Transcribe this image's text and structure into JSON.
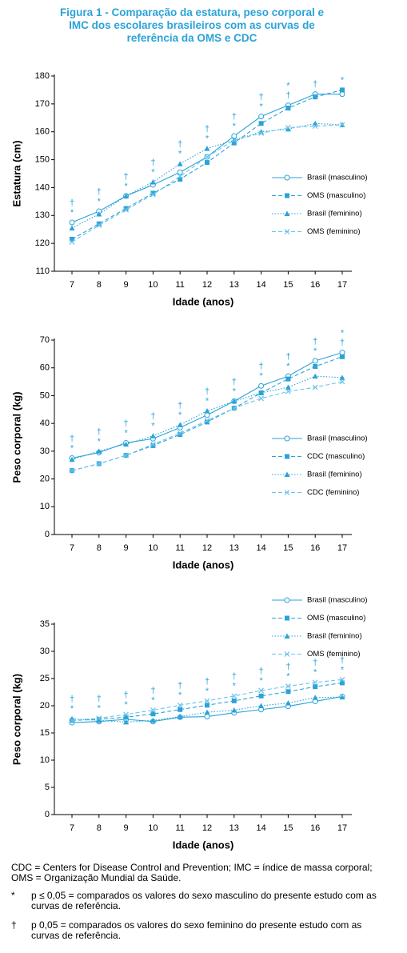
{
  "title": "Figura 1 - Comparação da estatura, peso corporal e IMC dos escolares brasileiros com as curvas de referência da OMS e CDC",
  "notes": {
    "abbreviations": "CDC = Centers for Disease Control and Prevention; IMC = índice de massa corporal; OMS = Organização Mundial da Saúde.",
    "items": [
      {
        "symbol": "*",
        "text": "p ≤ 0,05 = comparados os valores do sexo masculino do presente estudo com as curvas de referência."
      },
      {
        "symbol": "†",
        "text": "p  0,05 = comparados os valores do sexo feminino do presente estudo com as curvas de referência."
      }
    ]
  },
  "chart_data": [
    {
      "type": "line",
      "y_label": "Estatura (cm)",
      "x_label": "Idade (anos)",
      "legend": "right",
      "categories": [
        "7",
        "8",
        "9",
        "10",
        "11",
        "12",
        "13",
        "14",
        "15",
        "16",
        "17"
      ],
      "ylim": [
        110,
        180
      ],
      "yticks": [
        110,
        120,
        130,
        140,
        150,
        160,
        170,
        180
      ],
      "series": [
        {
          "name": "Brasil (masculino)",
          "color": "#2aa3d8",
          "line_style": "solid",
          "marker": "circle",
          "values": [
            127.5,
            131.5,
            137,
            141,
            145.5,
            151,
            158.5,
            165.5,
            169.5,
            173.5,
            173.5
          ]
        },
        {
          "name": "OMS (masculino)",
          "color": "#2aa3d8",
          "line_style": "dashed",
          "marker": "square",
          "values": [
            121.5,
            127,
            132.5,
            138,
            143,
            149,
            156,
            163,
            168.5,
            172.5,
            175
          ]
        },
        {
          "name": "Brasil (feminino)",
          "color": "#2aa3d8",
          "line_style": "dotted",
          "marker": "triangle",
          "values": [
            125.5,
            130.5,
            137,
            142,
            148.5,
            154,
            157,
            160,
            161,
            163,
            162.5
          ]
        },
        {
          "name": "OMS (feminino)",
          "color": "#6cc3ea",
          "line_style": "dashed",
          "marker": "x",
          "values": [
            120.5,
            126.5,
            132,
            137.5,
            144,
            151,
            157,
            159.5,
            161.5,
            162,
            162.5
          ]
        }
      ],
      "annotations": [
        {
          "category": "7",
          "labels": [
            "†",
            "*"
          ]
        },
        {
          "category": "8",
          "labels": [
            "†",
            "*"
          ]
        },
        {
          "category": "9",
          "labels": [
            "†",
            "*"
          ]
        },
        {
          "category": "10",
          "labels": [
            "†",
            "*"
          ]
        },
        {
          "category": "11",
          "labels": [
            "†",
            "*"
          ]
        },
        {
          "category": "12",
          "labels": [
            "†",
            "*"
          ]
        },
        {
          "category": "13",
          "labels": [
            "†",
            "*"
          ]
        },
        {
          "category": "14",
          "labels": [
            "†",
            "*"
          ]
        },
        {
          "category": "15",
          "labels": [
            "*",
            "†"
          ]
        },
        {
          "category": "16",
          "labels": [
            "†"
          ]
        },
        {
          "category": "17",
          "labels": [
            "*"
          ]
        }
      ]
    },
    {
      "type": "line",
      "y_label": "Peso corporal (kg)",
      "x_label": "Idade (anos)",
      "legend": "right",
      "categories": [
        "7",
        "8",
        "9",
        "10",
        "11",
        "12",
        "13",
        "14",
        "15",
        "16",
        "17"
      ],
      "ylim": [
        0,
        70
      ],
      "yticks": [
        0,
        10,
        20,
        30,
        40,
        50,
        60,
        70
      ],
      "series": [
        {
          "name": "Brasil (masculino)",
          "color": "#2aa3d8",
          "line_style": "solid",
          "marker": "circle",
          "values": [
            27.5,
            29.5,
            33,
            34.5,
            38.5,
            43,
            48,
            53.5,
            57,
            62.5,
            65.5
          ]
        },
        {
          "name": "CDC (masculino)",
          "color": "#2aa3d8",
          "line_style": "dashed",
          "marker": "square",
          "values": [
            23,
            25.5,
            28.5,
            32,
            36,
            40.5,
            45.5,
            51,
            56,
            60.5,
            64
          ]
        },
        {
          "name": "Brasil (feminino)",
          "color": "#2aa3d8",
          "line_style": "dotted",
          "marker": "triangle",
          "values": [
            27,
            30,
            32.5,
            35.5,
            39.5,
            44.5,
            48,
            51,
            53,
            57,
            56.5
          ]
        },
        {
          "name": "CDC (feminino)",
          "color": "#6cc3ea",
          "line_style": "dashed",
          "marker": "x",
          "values": [
            23,
            25.5,
            28.5,
            32.5,
            36.5,
            41,
            45.5,
            49,
            51.5,
            53,
            55
          ]
        }
      ],
      "annotations": [
        {
          "category": "7",
          "labels": [
            "†",
            "*"
          ]
        },
        {
          "category": "8",
          "labels": [
            "†",
            "*"
          ]
        },
        {
          "category": "9",
          "labels": [
            "†",
            "*"
          ]
        },
        {
          "category": "10",
          "labels": [
            "†",
            "*"
          ]
        },
        {
          "category": "11",
          "labels": [
            "†",
            "*"
          ]
        },
        {
          "category": "12",
          "labels": [
            "†",
            "*"
          ]
        },
        {
          "category": "13",
          "labels": [
            "†",
            "*"
          ]
        },
        {
          "category": "14",
          "labels": [
            "†",
            "*"
          ]
        },
        {
          "category": "15",
          "labels": [
            "†",
            "*"
          ]
        },
        {
          "category": "16",
          "labels": [
            "†",
            "*"
          ]
        },
        {
          "category": "17",
          "labels": [
            "*",
            "†"
          ]
        }
      ]
    },
    {
      "type": "line",
      "y_label": "Peso corporal (kg)",
      "x_label": "Idade (anos)",
      "legend": "upper right",
      "categories": [
        "7",
        "8",
        "9",
        "10",
        "11",
        "12",
        "13",
        "14",
        "15",
        "16",
        "17"
      ],
      "ylim": [
        0,
        35
      ],
      "yticks": [
        0,
        5,
        10,
        15,
        20,
        25,
        30,
        35
      ],
      "series": [
        {
          "name": "Brasil (masculino)",
          "color": "#2aa3d8",
          "line_style": "solid",
          "marker": "circle",
          "values": [
            16.9,
            17.1,
            17.5,
            17.1,
            17.9,
            18,
            18.7,
            19.3,
            19.9,
            20.8,
            21.7
          ]
        },
        {
          "name": "OMS (masculino)",
          "color": "#2aa3d8",
          "line_style": "dashed",
          "marker": "square",
          "values": [
            17.3,
            17.5,
            17.9,
            18.5,
            19.3,
            20.1,
            20.9,
            21.8,
            22.6,
            23.5,
            24.2
          ]
        },
        {
          "name": "Brasil (feminino)",
          "color": "#2aa3d8",
          "line_style": "dotted",
          "marker": "triangle",
          "values": [
            17.6,
            17.3,
            17.0,
            17.3,
            18.0,
            18.8,
            19.2,
            20,
            20.5,
            21.5,
            21.6
          ]
        },
        {
          "name": "OMS (feminino)",
          "color": "#6cc3ea",
          "line_style": "dashed",
          "marker": "x",
          "values": [
            17.3,
            17.7,
            18.4,
            19.2,
            20.1,
            20.9,
            21.8,
            22.8,
            23.6,
            24.3,
            24.8
          ]
        }
      ],
      "annotations": [
        {
          "category": "7",
          "labels": [
            "†",
            "*"
          ]
        },
        {
          "category": "8",
          "labels": [
            "†",
            "*"
          ]
        },
        {
          "category": "9",
          "labels": [
            "†",
            "*"
          ]
        },
        {
          "category": "10",
          "labels": [
            "†",
            "*"
          ]
        },
        {
          "category": "11",
          "labels": [
            "†",
            "*"
          ]
        },
        {
          "category": "12",
          "labels": [
            "†",
            "*"
          ]
        },
        {
          "category": "13",
          "labels": [
            "†",
            "*"
          ]
        },
        {
          "category": "14",
          "labels": [
            "†",
            "*"
          ]
        },
        {
          "category": "15",
          "labels": [
            "†",
            "*"
          ]
        },
        {
          "category": "16",
          "labels": [
            "†",
            "*"
          ]
        },
        {
          "category": "17",
          "labels": [
            "†",
            "*"
          ]
        }
      ]
    }
  ]
}
